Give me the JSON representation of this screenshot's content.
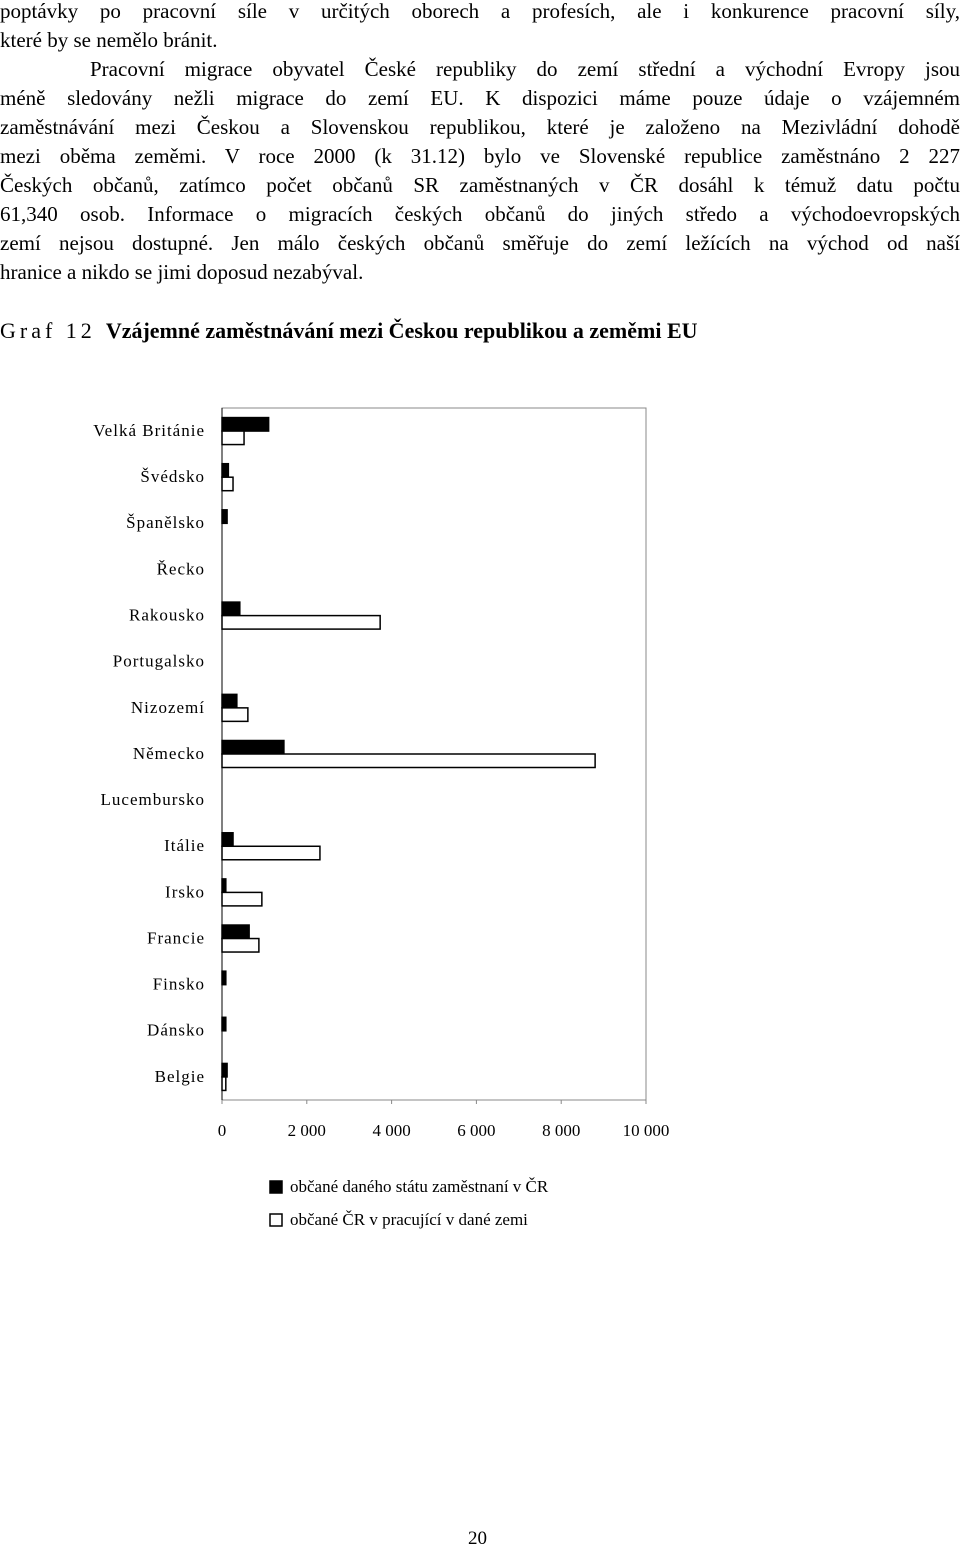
{
  "text": {
    "lines": [
      "poptávky po pracovní síle v určitých oborech a profesích, ale i konkurence pracovní síly,",
      "které by se nemělo bránit.",
      "Pracovní migrace obyvatel České republiky do zemí střední a východní Evropy jsou",
      "méně sledovány nežli migrace do zemí EU. K dispozici máme pouze údaje o vzájemném",
      "zaměstnávání mezi Českou a Slovenskou republikou, které je založeno na Mezivládní dohodě",
      "mezi oběma zeměmi. V roce 2000 (k 31.12) bylo ve Slovenské republice zaměstnáno 2 227",
      "Českých občanů, zatímco počet občanů SR zaměstnaných v ČR dosáhl k témuž datu počtu",
      "61,340 osob. Informace o migracích českých občanů do jiných středo a východoevropských",
      "zemí nejsou dostupné. Jen málo českých občanů směřuje do zemí ležících na východ od naší",
      "hranice a nikdo se jimi doposud nezabýval."
    ],
    "caption_label": "Graf 12",
    "caption_title": "Vzájemné zaměstnávání mezi Českou republikou a zeměmi EU",
    "page_number": "20"
  },
  "chart_data": {
    "type": "barh",
    "categories": [
      "Velká Británie",
      "Švédsko",
      "Španělsko",
      "Řecko",
      "Rakousko",
      "Portugalsko",
      "Nizozemí",
      "Německo",
      "Lucembursko",
      "Itálie",
      "Irsko",
      "Francie",
      "Finsko",
      "Dánsko",
      "Belgie"
    ],
    "series": [
      {
        "name": "občané daného státu zaměstnaní v ČR",
        "color": "#000000",
        "values": [
          1100,
          150,
          120,
          0,
          420,
          0,
          350,
          1460,
          0,
          260,
          90,
          640,
          90,
          90,
          120
        ]
      },
      {
        "name": "občané ČR v pracující v dané zemi",
        "color": "#ffffff",
        "values": [
          520,
          260,
          0,
          0,
          3730,
          0,
          610,
          8800,
          0,
          2310,
          940,
          870,
          0,
          0,
          90
        ]
      }
    ],
    "xlim": [
      0,
      10000
    ],
    "xticks": [
      0,
      {
        "value": 2000,
        "label": "2 000"
      },
      {
        "value": 4000,
        "label": "4 000"
      },
      {
        "value": 6000,
        "label": "6 000"
      },
      {
        "value": 8000,
        "label": "8 000"
      },
      {
        "value": 10000,
        "label": "10 000"
      }
    ]
  }
}
